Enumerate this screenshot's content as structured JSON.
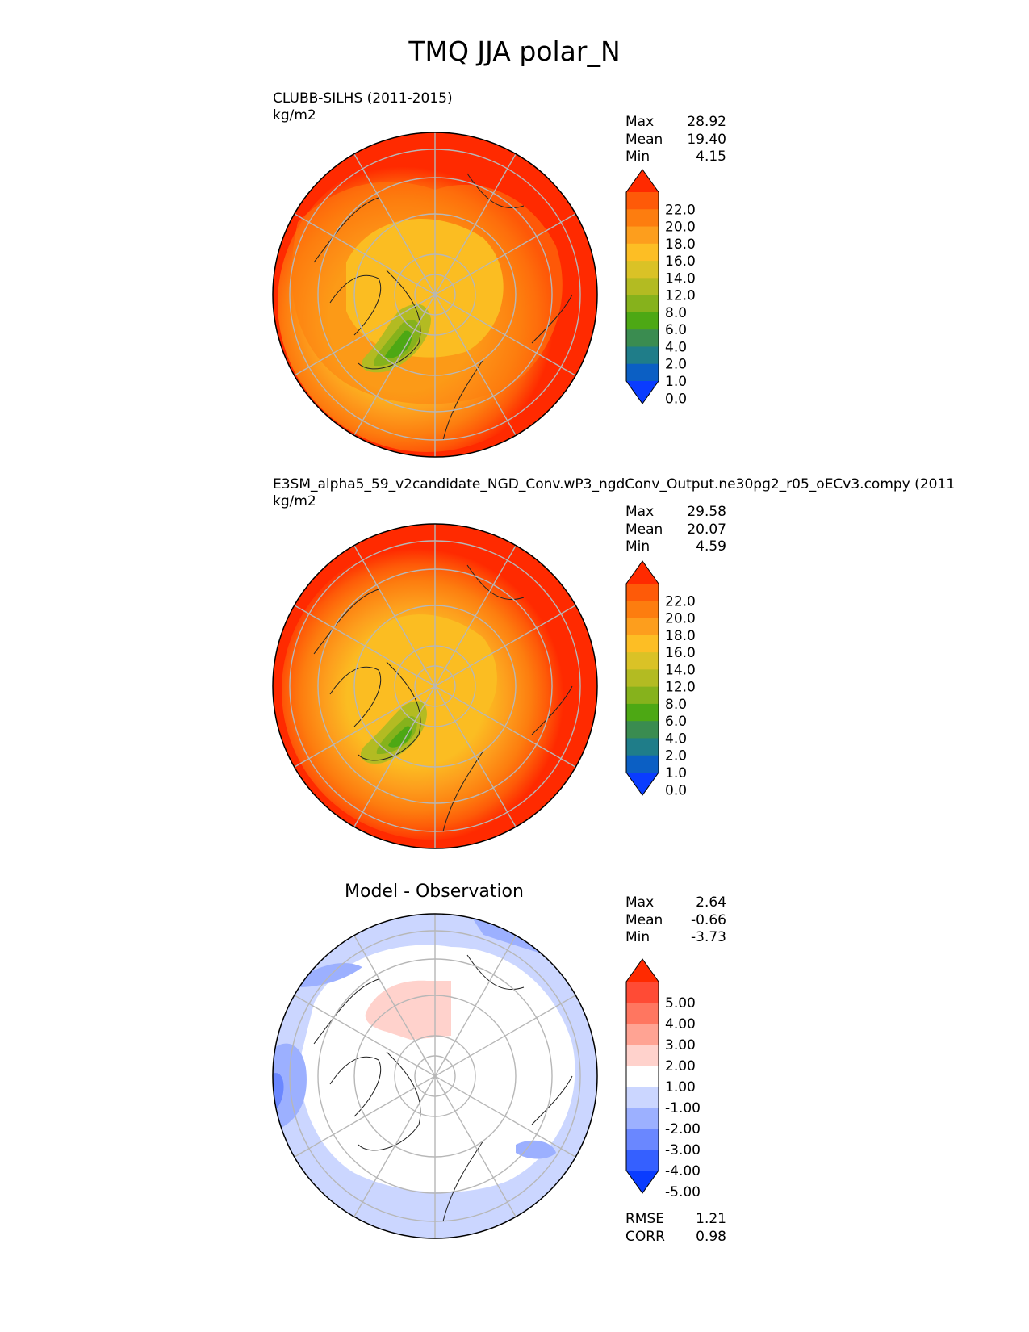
{
  "figure": {
    "title": "TMQ JJA polar_N"
  },
  "panels": [
    {
      "name": "CLUBB-SILHS (2011-2015)",
      "units": "kg/m2",
      "stats": [
        {
          "label": "Max",
          "value": "28.92"
        },
        {
          "label": "Mean",
          "value": "19.40"
        },
        {
          "label": "Min",
          "value": "4.15"
        }
      ],
      "colorbar": {
        "labels": [
          "22.0",
          "20.0",
          "18.0",
          "16.0",
          "14.0",
          "12.0",
          "8.0",
          "6.0",
          "4.0",
          "2.0",
          "1.0",
          "0.0"
        ],
        "colors_bottom_to_top": [
          "#0a3cff",
          "#0b5fc4",
          "#1f7d89",
          "#3a8c50",
          "#4da814",
          "#86b21c",
          "#b3bb22",
          "#dac226",
          "#fdbe24",
          "#fd9e1d",
          "#fd7d0f",
          "#fe5a08",
          "#ff2a00"
        ]
      }
    },
    {
      "name": "E3SM_alpha5_59_v2candidate_NGD_Conv.wP3_ngdConv_Output.ne30pg2_r05_oECv3.compy (2011",
      "units": "kg/m2",
      "stats": [
        {
          "label": "Max",
          "value": "29.58"
        },
        {
          "label": "Mean",
          "value": "20.07"
        },
        {
          "label": "Min",
          "value": "4.59"
        }
      ],
      "colorbar": {
        "labels": [
          "22.0",
          "20.0",
          "18.0",
          "16.0",
          "14.0",
          "12.0",
          "8.0",
          "6.0",
          "4.0",
          "2.0",
          "1.0",
          "0.0"
        ],
        "colors_bottom_to_top": [
          "#0a3cff",
          "#0b5fc4",
          "#1f7d89",
          "#3a8c50",
          "#4da814",
          "#86b21c",
          "#b3bb22",
          "#dac226",
          "#fdbe24",
          "#fd9e1d",
          "#fd7d0f",
          "#fe5a08",
          "#ff2a00"
        ]
      }
    },
    {
      "name": "Model - Observation",
      "units": "",
      "stats": [
        {
          "label": "Max",
          "value": "2.64"
        },
        {
          "label": "Mean",
          "value": "-0.66"
        },
        {
          "label": "Min",
          "value": "-3.73"
        }
      ],
      "extra_stats": [
        {
          "label": "RMSE",
          "value": "1.21"
        },
        {
          "label": "CORR",
          "value": "0.98"
        }
      ],
      "colorbar": {
        "labels": [
          "5.00",
          "4.00",
          "3.00",
          "2.00",
          "1.00",
          "-1.00",
          "-2.00",
          "-3.00",
          "-4.00",
          "-5.00"
        ],
        "colors_bottom_to_top": [
          "#0a3cff",
          "#3560ff",
          "#6a87ff",
          "#9cb0ff",
          "#cbd6ff",
          "#ffffff",
          "#ffd2cc",
          "#ffa393",
          "#ff7660",
          "#ff4b35",
          "#ff2a00"
        ]
      }
    }
  ],
  "chart_data": [
    {
      "type": "heatmap",
      "title": "CLUBB-SILHS (2011-2015)",
      "projection": "north polar stereographic",
      "variable": "TMQ",
      "season": "JJA",
      "units": "kg/m2",
      "contour_levels": [
        0,
        1,
        2,
        4,
        6,
        8,
        12,
        14,
        16,
        18,
        20,
        22
      ],
      "max": 28.92,
      "mean": 19.4,
      "min": 4.15
    },
    {
      "type": "heatmap",
      "title": "E3SM_alpha5_59_v2candidate_NGD_Conv.wP3_ngdConv_Output.ne30pg2_r05_oECv3.compy (2011",
      "projection": "north polar stereographic",
      "variable": "TMQ",
      "season": "JJA",
      "units": "kg/m2",
      "contour_levels": [
        0,
        1,
        2,
        4,
        6,
        8,
        12,
        14,
        16,
        18,
        20,
        22
      ],
      "max": 29.58,
      "mean": 20.07,
      "min": 4.59
    },
    {
      "type": "heatmap",
      "title": "Model - Observation",
      "projection": "north polar stereographic",
      "variable": "TMQ difference",
      "season": "JJA",
      "contour_levels": [
        -5,
        -4,
        -3,
        -2,
        -1,
        1,
        2,
        3,
        4,
        5
      ],
      "max": 2.64,
      "mean": -0.66,
      "min": -3.73,
      "rmse": 1.21,
      "corr": 0.98
    }
  ]
}
